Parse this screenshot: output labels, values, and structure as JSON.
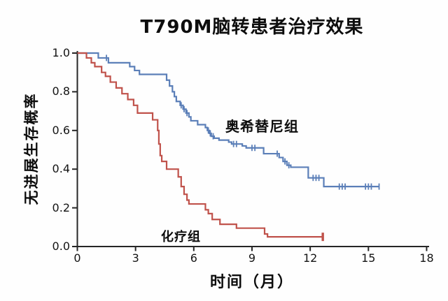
{
  "chart_data": {
    "type": "line",
    "subtype": "kaplan-meier-step",
    "title": "T790M脑转患者治疗效果",
    "xlabel": "时间（月）",
    "ylabel": "无进展生存概率",
    "xlim": [
      0,
      18
    ],
    "ylim": [
      0.0,
      1.0
    ],
    "grid": false,
    "legend_position": "inline-labels",
    "x_ticks": [
      {
        "v": 0,
        "label": "0"
      },
      {
        "v": 3,
        "label": "3"
      },
      {
        "v": 6,
        "label": "6"
      },
      {
        "v": 9,
        "label": "9"
      },
      {
        "v": 12,
        "label": "12"
      },
      {
        "v": 15,
        "label": "15"
      },
      {
        "v": 18,
        "label": "18"
      }
    ],
    "y_ticks": [
      {
        "v": 1.0,
        "label": "1.0"
      },
      {
        "v": 0.8,
        "label": "0.8"
      },
      {
        "v": 0.6,
        "label": "0.6"
      },
      {
        "v": 0.4,
        "label": "0.4"
      },
      {
        "v": 0.2,
        "label": "0.2"
      },
      {
        "v": 0.0,
        "label": "0.0"
      }
    ],
    "series": [
      {
        "name": "奥希替尼组",
        "color": "#5b7fb8",
        "line_width": 2.2,
        "censor_width": 1.8,
        "start": [
          0,
          1.0
        ],
        "steps": [
          [
            1.08,
            0.975
          ],
          [
            1.6,
            0.95
          ],
          [
            2.7,
            0.93
          ],
          [
            2.95,
            0.91
          ],
          [
            3.2,
            0.89
          ],
          [
            4.6,
            0.86
          ],
          [
            4.75,
            0.83
          ],
          [
            4.9,
            0.8
          ],
          [
            5.0,
            0.775
          ],
          [
            5.1,
            0.75
          ],
          [
            5.3,
            0.73
          ],
          [
            5.45,
            0.71
          ],
          [
            5.6,
            0.69
          ],
          [
            5.75,
            0.67
          ],
          [
            5.85,
            0.65
          ],
          [
            6.2,
            0.63
          ],
          [
            6.6,
            0.615
          ],
          [
            6.7,
            0.6
          ],
          [
            6.8,
            0.585
          ],
          [
            6.9,
            0.57
          ],
          [
            7.05,
            0.56
          ],
          [
            7.3,
            0.55
          ],
          [
            7.8,
            0.54
          ],
          [
            7.95,
            0.53
          ],
          [
            8.5,
            0.52
          ],
          [
            8.7,
            0.51
          ],
          [
            9.6,
            0.48
          ],
          [
            10.4,
            0.46
          ],
          [
            10.6,
            0.44
          ],
          [
            10.8,
            0.42
          ],
          [
            11.0,
            0.41
          ],
          [
            11.9,
            0.355
          ],
          [
            12.7,
            0.31
          ]
        ],
        "end": 15.55,
        "censors": [
          [
            1.5,
            0.975
          ],
          [
            5.35,
            0.73
          ],
          [
            5.5,
            0.71
          ],
          [
            5.65,
            0.69
          ],
          [
            6.75,
            0.6
          ],
          [
            6.85,
            0.585
          ],
          [
            7.0,
            0.57
          ],
          [
            8.05,
            0.53
          ],
          [
            8.2,
            0.53
          ],
          [
            9.0,
            0.51
          ],
          [
            9.15,
            0.51
          ],
          [
            10.3,
            0.48
          ],
          [
            10.7,
            0.44
          ],
          [
            10.9,
            0.42
          ],
          [
            12.15,
            0.355
          ],
          [
            12.3,
            0.355
          ],
          [
            12.45,
            0.355
          ],
          [
            13.5,
            0.31
          ],
          [
            13.65,
            0.31
          ],
          [
            13.8,
            0.31
          ],
          [
            14.85,
            0.31
          ],
          [
            15.0,
            0.31
          ],
          [
            15.15,
            0.31
          ],
          [
            15.55,
            0.31
          ]
        ]
      },
      {
        "name": "化疗组",
        "color": "#c0524b",
        "line_width": 2.2,
        "censor_width": 3.4,
        "start": [
          0,
          1.0
        ],
        "steps": [
          [
            0.47,
            0.975
          ],
          [
            0.72,
            0.95
          ],
          [
            0.9,
            0.93
          ],
          [
            1.25,
            0.9
          ],
          [
            1.45,
            0.88
          ],
          [
            1.7,
            0.85
          ],
          [
            2.0,
            0.82
          ],
          [
            2.3,
            0.79
          ],
          [
            2.6,
            0.76
          ],
          [
            2.9,
            0.73
          ],
          [
            3.1,
            0.69
          ],
          [
            3.88,
            0.655
          ],
          [
            4.14,
            0.6
          ],
          [
            4.2,
            0.53
          ],
          [
            4.27,
            0.47
          ],
          [
            4.35,
            0.44
          ],
          [
            4.6,
            0.4
          ],
          [
            5.2,
            0.36
          ],
          [
            5.35,
            0.31
          ],
          [
            5.5,
            0.27
          ],
          [
            5.65,
            0.24
          ],
          [
            5.75,
            0.22
          ],
          [
            6.6,
            0.19
          ],
          [
            6.75,
            0.17
          ],
          [
            6.95,
            0.14
          ],
          [
            7.35,
            0.115
          ],
          [
            8.2,
            0.095
          ],
          [
            9.65,
            0.065
          ],
          [
            9.8,
            0.05
          ]
        ],
        "end": 12.65,
        "censors": [
          [
            12.65,
            0.05
          ]
        ]
      }
    ],
    "axis_color": "#262626",
    "tick_text_color": "#141414"
  }
}
